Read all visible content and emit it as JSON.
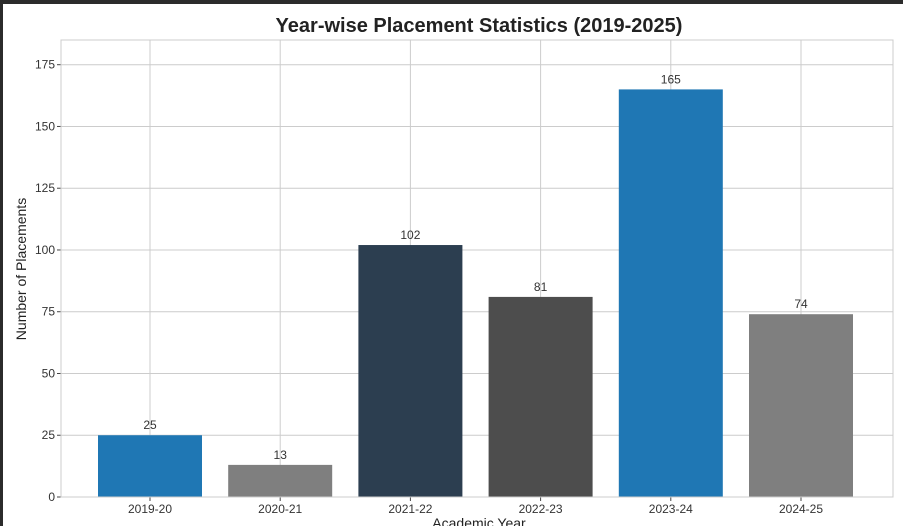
{
  "chart_data": {
    "type": "bar",
    "title": "Year-wise Placement Statistics (2019-2025)",
    "xlabel": "Academic Year",
    "ylabel": "Number of Placements",
    "categories": [
      "2019-20",
      "2020-21",
      "2021-22",
      "2022-23",
      "2023-24",
      "2024-25"
    ],
    "values": [
      25,
      13,
      102,
      81,
      165,
      74
    ],
    "bar_colors": [
      "#1f77b4",
      "#7f7f7f",
      "#2c3e50",
      "#4d4d4d",
      "#1f77b4",
      "#7f7f7f"
    ],
    "ylim": [
      0,
      185
    ],
    "yticks": [
      0,
      25,
      50,
      75,
      100,
      125,
      150,
      175
    ],
    "grid": true,
    "data_labels": true
  }
}
